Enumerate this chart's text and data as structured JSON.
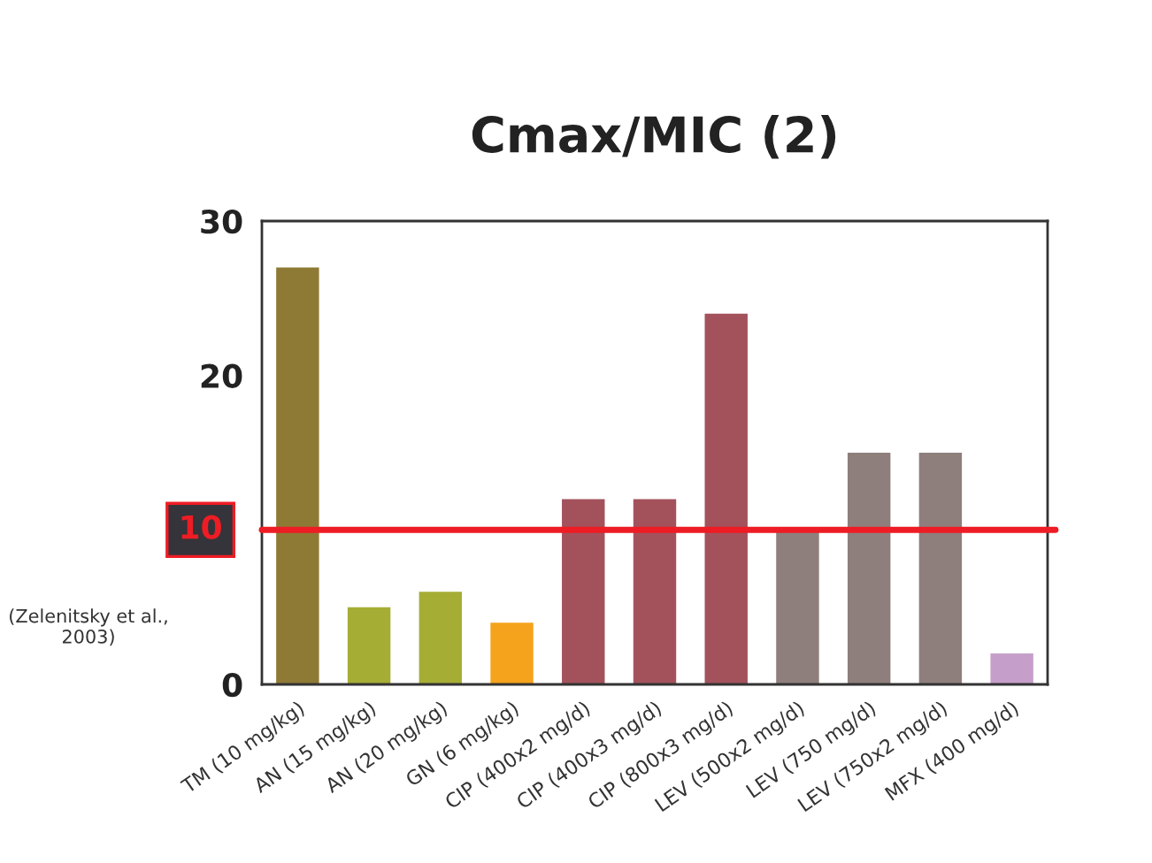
{
  "chart_data": {
    "type": "bar",
    "title": "Cmax/MIC (2)",
    "categories": [
      "TM (10 mg/kg)",
      "AN (15 mg/kg)",
      "AN (20 mg/kg)",
      "GN (6 mg/kg)",
      "CIP (400x2 mg/d)",
      "CIP (400x3 mg/d)",
      "CIP (800x3 mg/d)",
      "LEV (500x2 mg/d)",
      "LEV (750 mg/d)",
      "LEV (750x2 mg/d)",
      "MFX (400 mg/d)"
    ],
    "values": [
      27,
      5,
      6,
      4,
      12,
      12,
      24,
      10,
      15,
      15,
      2
    ],
    "colors": [
      "#8f7a35",
      "#a6ad35",
      "#a6ad35",
      "#f5a31c",
      "#a3525c",
      "#a3525c",
      "#a3525c",
      "#8e7f7c",
      "#8e7f7c",
      "#8e7f7c",
      "#c59fc9"
    ],
    "ylim": [
      0,
      30
    ],
    "yticks": [
      0,
      20,
      30
    ],
    "ref_lines": [
      {
        "axis": "y",
        "value": 10,
        "label": "10",
        "color": "#ee1c24"
      }
    ],
    "annotations": [
      "(Zelenitsky et al.,\n2003)"
    ],
    "grid": false,
    "legend": false
  }
}
